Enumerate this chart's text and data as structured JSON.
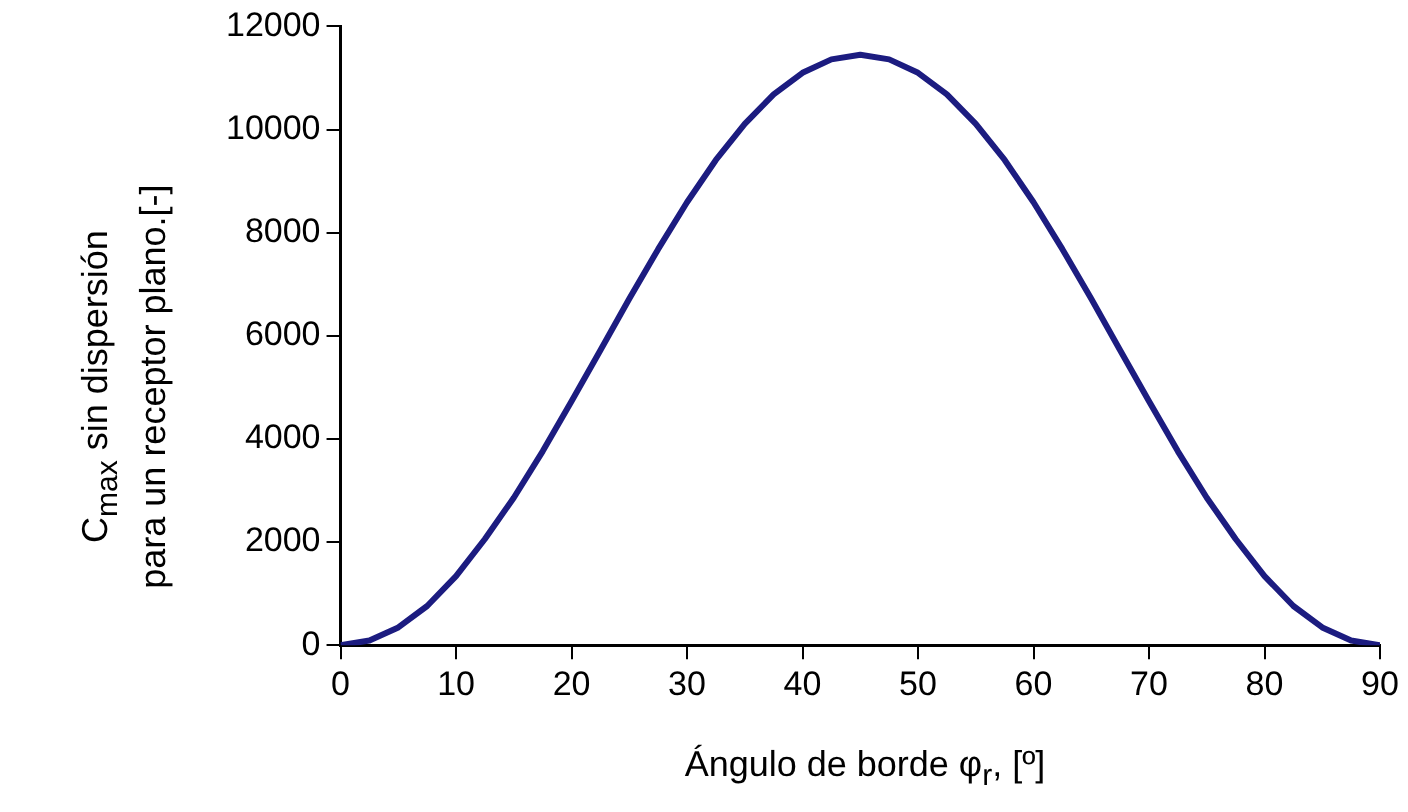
{
  "chart_data": {
    "type": "line",
    "ylabel": "C$_{max}$ sin dispersión\npara un receptor plano.[-]",
    "xlabel": "Ángulo de borde φ$_{r}$, [º]",
    "x": [
      0,
      2.5,
      5,
      7.5,
      10,
      12.5,
      15,
      17.5,
      20,
      22.5,
      25,
      27.5,
      30,
      32.5,
      35,
      37.5,
      40,
      42.5,
      45,
      47.5,
      50,
      52.5,
      55,
      57.5,
      60,
      62.5,
      65,
      67.5,
      70,
      72.5,
      75,
      77.5,
      80,
      82.5,
      85,
      87.5,
      90
    ],
    "series": [
      {
        "color": "#1c1c80",
        "values": [
          0,
          90,
          345,
          760,
          1340,
          2060,
          2860,
          3760,
          4730,
          5720,
          6720,
          7680,
          8590,
          9410,
          10110,
          10680,
          11100,
          11360,
          11450,
          11360,
          11100,
          10680,
          10110,
          9410,
          8590,
          7680,
          6720,
          5720,
          4730,
          3760,
          2860,
          2060,
          1340,
          760,
          345,
          90,
          0
        ]
      }
    ],
    "xlim": [
      0,
      90
    ],
    "xticks": [
      0,
      10,
      20,
      30,
      40,
      50,
      60,
      70,
      80,
      90
    ],
    "ylim": [
      0,
      12000
    ],
    "yticks": [
      0,
      2000,
      4000,
      6000,
      8000,
      10000,
      12000
    ],
    "grid": false,
    "legend": false,
    "marker": "none",
    "line_style": "solid"
  }
}
